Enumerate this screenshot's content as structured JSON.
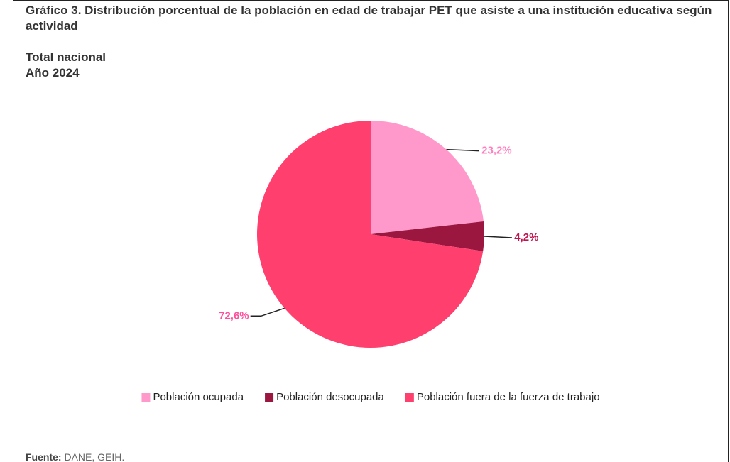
{
  "chart_data": {
    "type": "pie",
    "title": "Gráfico 3. Distribución porcentual de la población en edad de trabajar PET que asiste a una institución educativa según actividad",
    "subtitle": "Total nacional",
    "year_label": "Año 2024",
    "categories": [
      "Población ocupada",
      "Población desocupada",
      "Población fuera de la fuerza de trabajo"
    ],
    "values": [
      23.2,
      4.2,
      72.6
    ],
    "value_labels": [
      "23,2%",
      "4,2%",
      "72,6%"
    ],
    "colors": [
      "#ff99cc",
      "#9b1740",
      "#ff406e"
    ],
    "label_colors": [
      "#ff7fbf",
      "#c0124e",
      "#ff4f9b"
    ],
    "legend": "bottom",
    "source_label": "Fuente:",
    "source": "DANE, GEIH."
  }
}
